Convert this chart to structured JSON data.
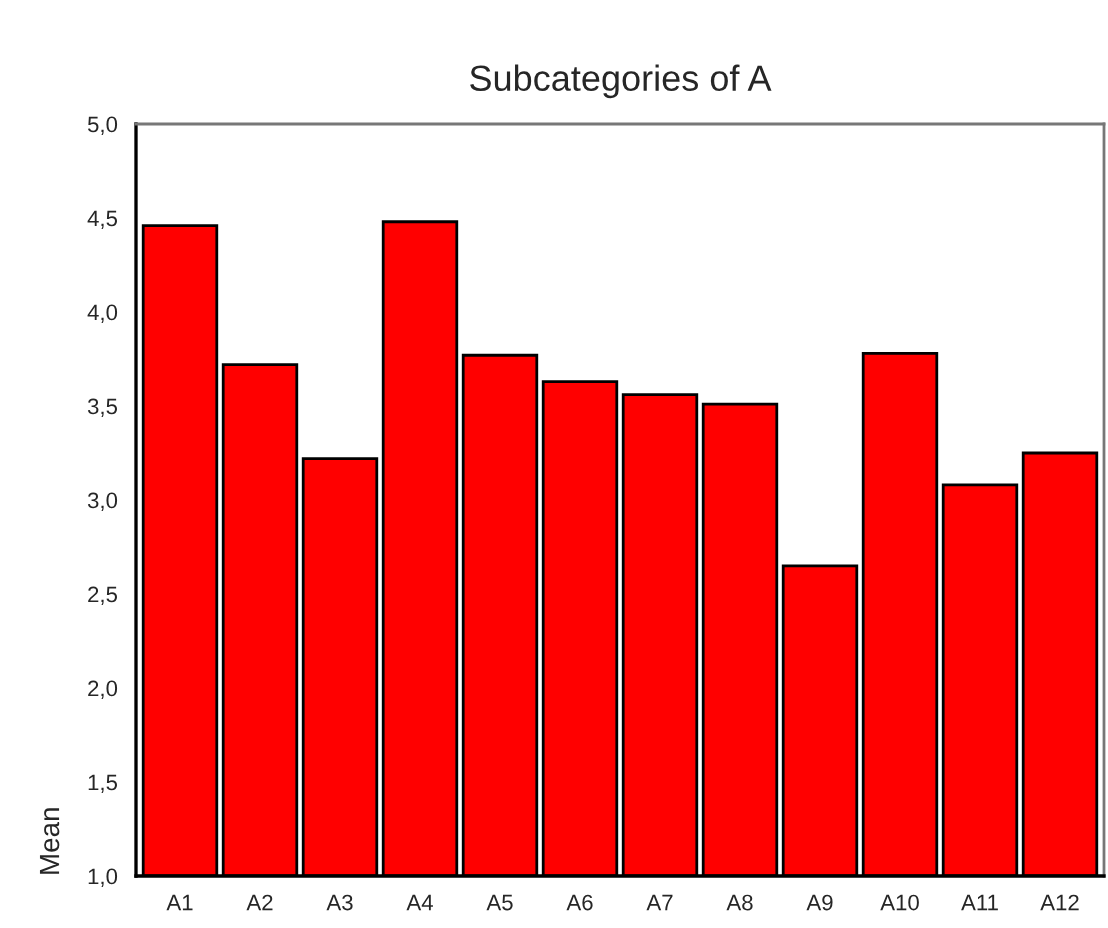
{
  "chart_data": {
    "type": "bar",
    "title": "Subcategories of A",
    "ylabel": "Mean",
    "categories": [
      "A1",
      "A2",
      "A3",
      "A4",
      "A5",
      "A6",
      "A7",
      "A8",
      "A9",
      "A10",
      "A11",
      "A12"
    ],
    "values": [
      4.46,
      3.72,
      3.22,
      4.48,
      3.77,
      3.63,
      3.56,
      3.51,
      2.65,
      3.78,
      3.08,
      3.25
    ],
    "color": "#ff0000",
    "ylim": [
      1.0,
      5.0
    ],
    "yticks": [
      {
        "value": 1.0,
        "label": "1,0"
      },
      {
        "value": 1.5,
        "label": "1,5"
      },
      {
        "value": 2.0,
        "label": "2,0"
      },
      {
        "value": 2.5,
        "label": "2,5"
      },
      {
        "value": 3.0,
        "label": "3,0"
      },
      {
        "value": 3.5,
        "label": "3,5"
      },
      {
        "value": 4.0,
        "label": "4,0"
      },
      {
        "value": 4.5,
        "label": "4,5"
      },
      {
        "value": 5.0,
        "label": "5,0"
      }
    ],
    "grid": false
  }
}
